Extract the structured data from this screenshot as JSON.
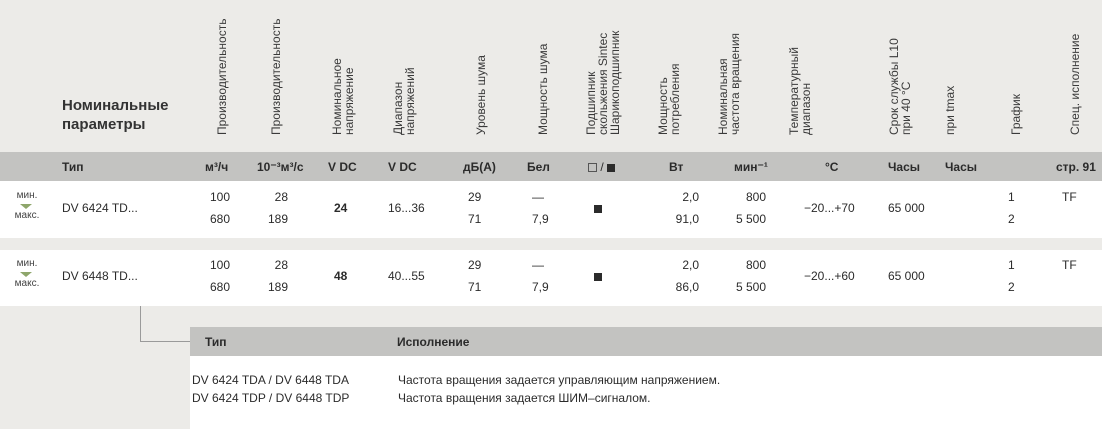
{
  "title": "Номинальные параметры",
  "headers": [
    "Производительность",
    "Производительность",
    "Номинальное\nнапряжение",
    "Диапазон\nнапряжений",
    "Уровень шума",
    "Мощность шума",
    "Подшипник\nскольжения Sintec\nШарикоподшипник",
    "Мощность\nпотребления",
    "Номинальная\nчастота вращения",
    "Температурный\nдиапазон",
    "Срок службы L10\nпри 40 °C",
    "при tmax",
    "График",
    "Спец. исполнение"
  ],
  "units": {
    "type": "Тип",
    "flow_m3h": "м³/ч",
    "flow_m3s": "10⁻³м³/с",
    "voltage": "V DC",
    "range": "V DC",
    "noise": "дБ(А)",
    "power_noise": "Бел",
    "bearing": "□/■",
    "power": "Вт",
    "speed": "мин⁻¹",
    "temp": "°C",
    "life": "Часы",
    "life_tmax": "Часы",
    "special": "стр. 91"
  },
  "min_label": "мин.",
  "max_label": "макс.",
  "rows": [
    {
      "type": "DV 6424 TD...",
      "flow_m3h": [
        "100",
        "680"
      ],
      "flow_m3s": [
        "28",
        "189"
      ],
      "voltage": "24",
      "range": "16...36",
      "noise": [
        "29",
        "71"
      ],
      "power_noise": [
        "—",
        "7,9"
      ],
      "power": [
        "2,0",
        "91,0"
      ],
      "speed": [
        "800",
        "5 500"
      ],
      "temp": "−20...+70",
      "life": "65 000",
      "graph": [
        "1",
        "2"
      ],
      "special": "TF"
    },
    {
      "type": "DV 6448 TD...",
      "flow_m3h": [
        "100",
        "680"
      ],
      "flow_m3s": [
        "28",
        "189"
      ],
      "voltage": "48",
      "range": "40...55",
      "noise": [
        "29",
        "71"
      ],
      "power_noise": [
        "—",
        "7,9"
      ],
      "power": [
        "2,0",
        "86,0"
      ],
      "speed": [
        "800",
        "5 500"
      ],
      "temp": "−20...+60",
      "life": "65 000",
      "graph": [
        "1",
        "2"
      ],
      "special": "TF"
    }
  ],
  "variants": {
    "col_type": "Тип",
    "col_version": "Исполнение",
    "items": [
      {
        "type": "DV 6424 TDA / DV 6448 TDA",
        "desc": "Частота вращения задается управляющим напряжением."
      },
      {
        "type": "DV 6424 TDP / DV 6448 TDP",
        "desc": "Частота вращения задается ШИМ–сигналом."
      }
    ]
  }
}
